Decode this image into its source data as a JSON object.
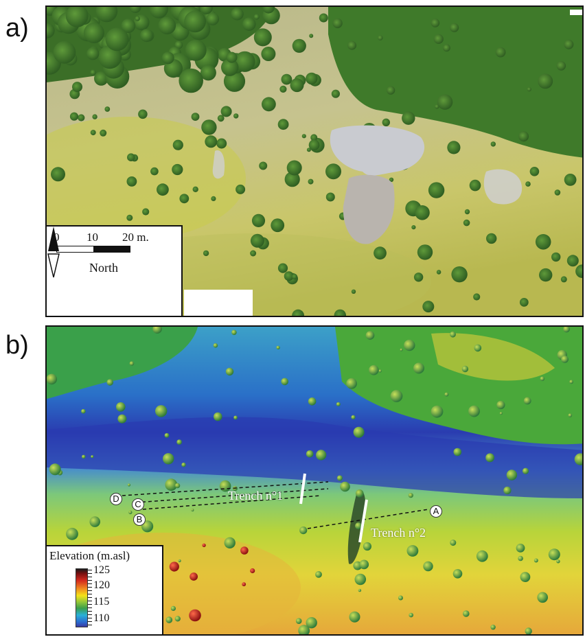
{
  "panels": {
    "a": {
      "label": "a)"
    },
    "b": {
      "label": "b)"
    }
  },
  "scale_bar": {
    "ticks": [
      "0",
      "10",
      "20 m."
    ],
    "north_label": "North"
  },
  "elevation_legend": {
    "title": "Elevation (m.asl)",
    "ticks": [
      "125",
      "120",
      "115",
      "110"
    ]
  },
  "trenches": [
    {
      "label": "Trench n°1"
    },
    {
      "label": "Trench n°2"
    }
  ],
  "profile_points": [
    "A",
    "B",
    "C",
    "D"
  ],
  "colors": {
    "vegetation": "#3f7a2a",
    "grassland": "#c8c58a",
    "excavation": "#c9cbd0",
    "dem_low": "#2a3cb0",
    "dem_mid": "#b8d43a",
    "dem_high": "#d42a1e"
  }
}
